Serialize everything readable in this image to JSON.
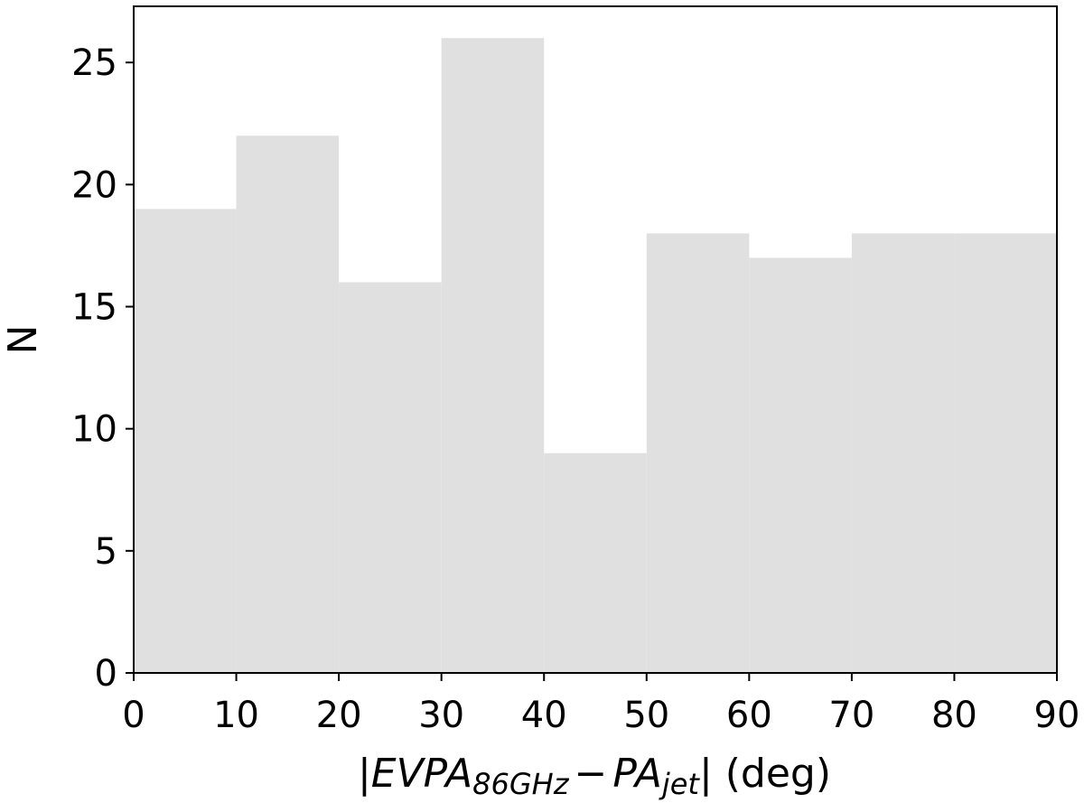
{
  "chart_data": {
    "type": "bar",
    "histogram": true,
    "bin_edges": [
      0,
      10,
      20,
      30,
      40,
      50,
      60,
      70,
      80,
      90
    ],
    "values": [
      19,
      22,
      16,
      26,
      9,
      18,
      17,
      18,
      18
    ],
    "xlim": [
      0,
      90
    ],
    "ylim": [
      0,
      27.3
    ],
    "x_ticks": [
      0,
      10,
      20,
      30,
      40,
      50,
      60,
      70,
      80,
      90
    ],
    "y_ticks": [
      0,
      5,
      10,
      15,
      20,
      25
    ],
    "xlabel": {
      "open": "|",
      "term1": "EVPA",
      "term1_sub": "86GHz",
      "minus": "−",
      "term2": "PA",
      "term2_sub": "jet",
      "close": "|",
      "unit": " (deg)"
    },
    "ylabel": "N",
    "grid": false,
    "colors": {
      "bar": "#e0e0e0",
      "axis": "#000000",
      "background": "#ffffff"
    }
  }
}
